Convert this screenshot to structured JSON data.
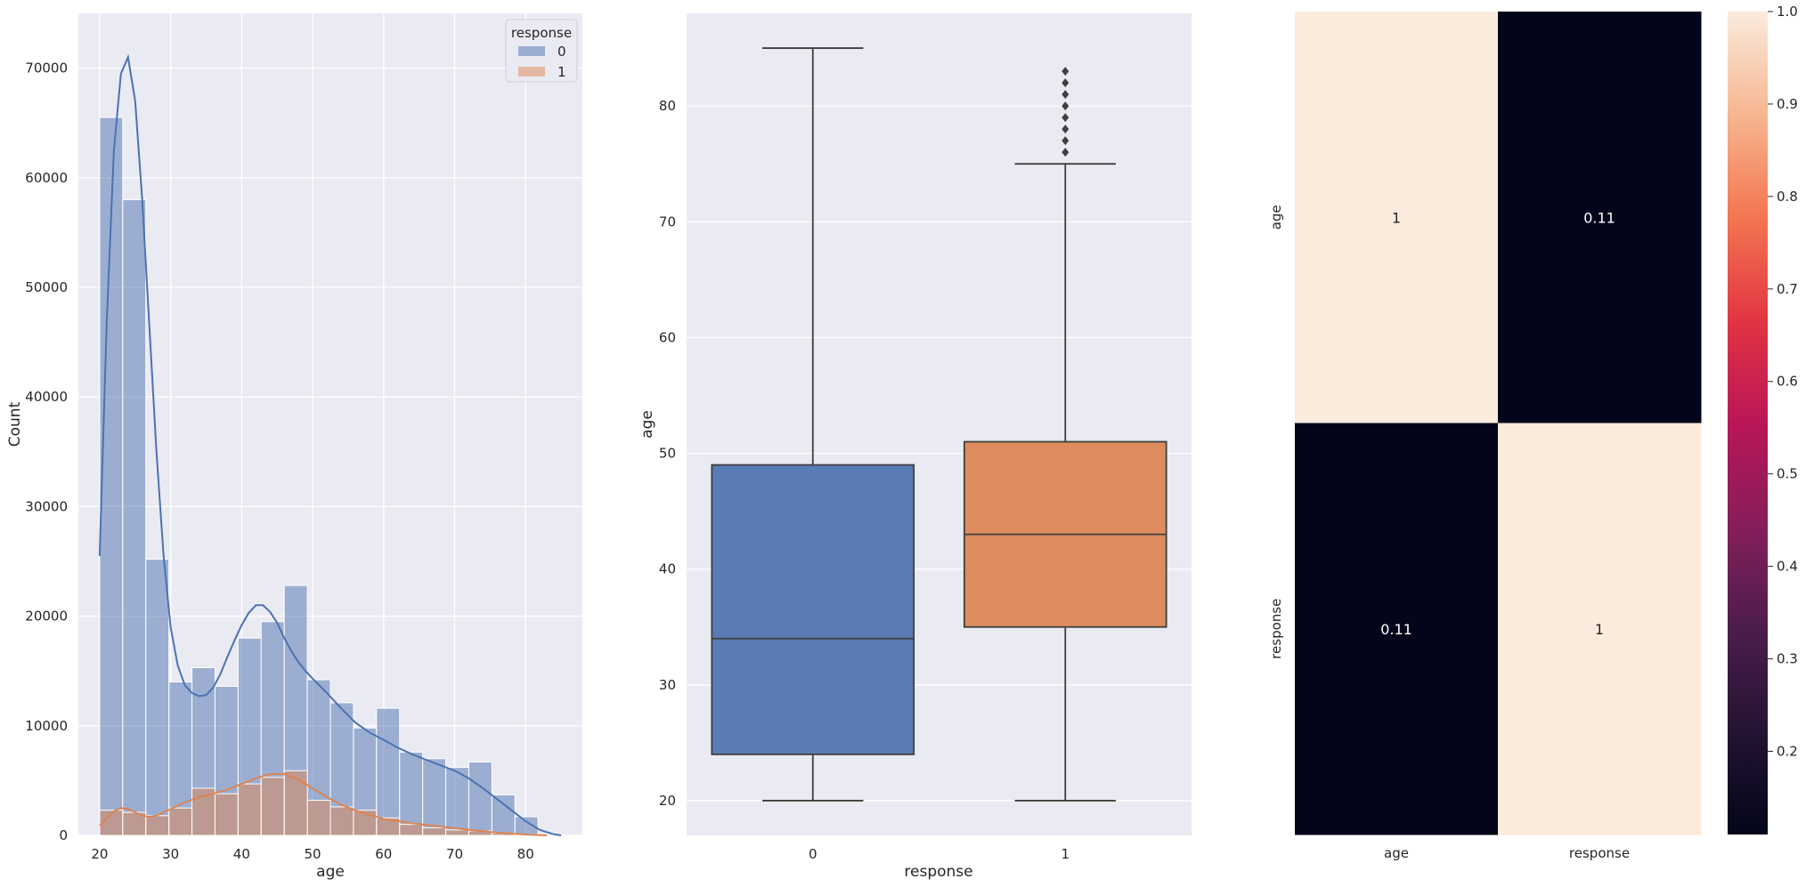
{
  "chart_data": [
    {
      "type": "histogram",
      "xlabel": "age",
      "ylabel": "Count",
      "xlim": [
        17,
        88
      ],
      "ylim": [
        0,
        75000
      ],
      "xticks": [
        20,
        30,
        40,
        50,
        60,
        70,
        80
      ],
      "yticks": [
        0,
        10000,
        20000,
        30000,
        40000,
        50000,
        60000,
        70000
      ],
      "grid": true,
      "legend": {
        "title": "response",
        "placement": "top-right"
      },
      "bin_edges": [
        20,
        23.25,
        26.5,
        29.75,
        33,
        36.25,
        39.5,
        42.75,
        46,
        49.25,
        52.5,
        55.75,
        59,
        62.25,
        65.5,
        68.75,
        72,
        75.25,
        78.5,
        81.75,
        85
      ],
      "series": [
        {
          "name": "0",
          "color": "#4c72b0",
          "counts": [
            65500,
            58000,
            25200,
            14000,
            15300,
            13600,
            18000,
            19500,
            22800,
            14200,
            12100,
            9800,
            11600,
            7600,
            7000,
            6200,
            6700,
            3700,
            1700,
            0
          ],
          "kde": {
            "x": [
              20,
              21,
              22,
              23,
              24,
              25,
              26,
              27,
              28,
              29,
              30,
              31,
              32,
              33,
              34,
              35,
              36,
              37,
              38,
              39,
              40,
              41,
              42,
              43,
              44,
              45,
              46,
              47,
              48,
              49,
              50,
              52,
              54,
              56,
              58,
              60,
              62,
              64,
              66,
              68,
              70,
              72,
              74,
              76,
              78,
              80,
              82,
              84,
              85
            ],
            "y": [
              25500,
              47000,
              62500,
              69500,
              71000,
              67000,
              58000,
              46500,
              35000,
              25500,
              19000,
              15500,
              13700,
              13000,
              12700,
              12800,
              13500,
              14700,
              16300,
              17800,
              19200,
              20300,
              21000,
              21000,
              20400,
              19400,
              18000,
              16800,
              15800,
              15000,
              14300,
              13000,
              11600,
              10300,
              9400,
              8700,
              8000,
              7400,
              6900,
              6400,
              5900,
              5200,
              4300,
              3300,
              2300,
              1300,
              500,
              100,
              0
            ]
          }
        },
        {
          "name": "1",
          "color": "#dd8452",
          "counts": [
            2300,
            2100,
            1800,
            2500,
            4300,
            3800,
            4700,
            5300,
            5900,
            3200,
            2600,
            2300,
            1600,
            1000,
            700,
            500,
            400,
            200,
            100,
            0
          ],
          "kde": {
            "x": [
              20,
              21,
              22,
              23,
              24,
              25,
              26,
              27,
              28,
              29,
              30,
              32,
              34,
              36,
              38,
              40,
              42,
              44,
              46,
              48,
              50,
              52,
              54,
              56,
              58,
              60,
              64,
              68,
              72,
              76,
              80,
              83
            ],
            "y": [
              900,
              1600,
              2200,
              2500,
              2400,
              2100,
              1800,
              1700,
              1800,
              2100,
              2400,
              3000,
              3500,
              3800,
              4200,
              4700,
              5200,
              5600,
              5600,
              5100,
              4300,
              3500,
              2800,
              2300,
              1900,
              1500,
              1100,
              800,
              500,
              250,
              80,
              0
            ]
          }
        }
      ]
    },
    {
      "type": "box",
      "xlabel": "response",
      "ylabel": "age",
      "categories": [
        "0",
        "1"
      ],
      "ylim": [
        17,
        88
      ],
      "yticks": [
        20,
        30,
        40,
        50,
        60,
        70,
        80
      ],
      "grid": true,
      "boxes": [
        {
          "category": "0",
          "color": "#4c72b0",
          "whisker_low": 20,
          "q1": 24,
          "median": 34,
          "q3": 49,
          "whisker_high": 85,
          "outliers": []
        },
        {
          "category": "1",
          "color": "#dd8452",
          "whisker_low": 20,
          "q1": 35,
          "median": 43,
          "q3": 51,
          "whisker_high": 75,
          "outliers": [
            76,
            77,
            78,
            79,
            80,
            81,
            82,
            83
          ]
        }
      ]
    },
    {
      "type": "heatmap",
      "xlabels": [
        "age",
        "response"
      ],
      "ylabels": [
        "age",
        "response"
      ],
      "values": [
        [
          1,
          0.11
        ],
        [
          0.11,
          1
        ]
      ],
      "annotations": [
        [
          "1",
          "0.11"
        ],
        [
          "0.11",
          "1"
        ]
      ],
      "colormap": "rocket",
      "colorbar": {
        "min": 0.11,
        "max": 1.0,
        "ticks": [
          0.2,
          0.3,
          0.4,
          0.5,
          0.6,
          0.7,
          0.8,
          0.9,
          1.0
        ],
        "tick_labels": [
          "0.2",
          "0.3",
          "0.4",
          "0.5",
          "0.6",
          "0.7",
          "0.8",
          "0.9",
          "1.0"
        ]
      }
    }
  ]
}
